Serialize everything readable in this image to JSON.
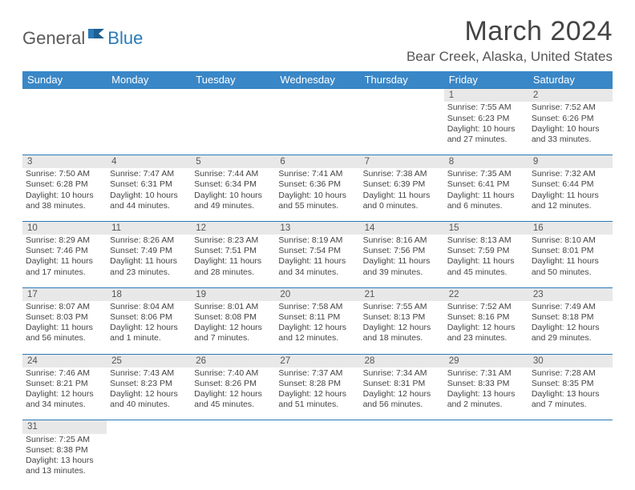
{
  "logo": {
    "part1": "General",
    "part2": "Blue"
  },
  "title": "March 2024",
  "location": "Bear Creek, Alaska, United States",
  "colors": {
    "header_bg": "#3a87c7",
    "accent": "#2a7ab8",
    "daynum_bg": "#e8e8e8",
    "text": "#444444",
    "logo_gray": "#5a5a5a"
  },
  "weekdays": [
    "Sunday",
    "Monday",
    "Tuesday",
    "Wednesday",
    "Thursday",
    "Friday",
    "Saturday"
  ],
  "weeks": [
    [
      null,
      null,
      null,
      null,
      null,
      {
        "n": "1",
        "sr": "Sunrise: 7:55 AM",
        "ss": "Sunset: 6:23 PM",
        "d1": "Daylight: 10 hours",
        "d2": "and 27 minutes."
      },
      {
        "n": "2",
        "sr": "Sunrise: 7:52 AM",
        "ss": "Sunset: 6:26 PM",
        "d1": "Daylight: 10 hours",
        "d2": "and 33 minutes."
      }
    ],
    [
      {
        "n": "3",
        "sr": "Sunrise: 7:50 AM",
        "ss": "Sunset: 6:28 PM",
        "d1": "Daylight: 10 hours",
        "d2": "and 38 minutes."
      },
      {
        "n": "4",
        "sr": "Sunrise: 7:47 AM",
        "ss": "Sunset: 6:31 PM",
        "d1": "Daylight: 10 hours",
        "d2": "and 44 minutes."
      },
      {
        "n": "5",
        "sr": "Sunrise: 7:44 AM",
        "ss": "Sunset: 6:34 PM",
        "d1": "Daylight: 10 hours",
        "d2": "and 49 minutes."
      },
      {
        "n": "6",
        "sr": "Sunrise: 7:41 AM",
        "ss": "Sunset: 6:36 PM",
        "d1": "Daylight: 10 hours",
        "d2": "and 55 minutes."
      },
      {
        "n": "7",
        "sr": "Sunrise: 7:38 AM",
        "ss": "Sunset: 6:39 PM",
        "d1": "Daylight: 11 hours",
        "d2": "and 0 minutes."
      },
      {
        "n": "8",
        "sr": "Sunrise: 7:35 AM",
        "ss": "Sunset: 6:41 PM",
        "d1": "Daylight: 11 hours",
        "d2": "and 6 minutes."
      },
      {
        "n": "9",
        "sr": "Sunrise: 7:32 AM",
        "ss": "Sunset: 6:44 PM",
        "d1": "Daylight: 11 hours",
        "d2": "and 12 minutes."
      }
    ],
    [
      {
        "n": "10",
        "sr": "Sunrise: 8:29 AM",
        "ss": "Sunset: 7:46 PM",
        "d1": "Daylight: 11 hours",
        "d2": "and 17 minutes."
      },
      {
        "n": "11",
        "sr": "Sunrise: 8:26 AM",
        "ss": "Sunset: 7:49 PM",
        "d1": "Daylight: 11 hours",
        "d2": "and 23 minutes."
      },
      {
        "n": "12",
        "sr": "Sunrise: 8:23 AM",
        "ss": "Sunset: 7:51 PM",
        "d1": "Daylight: 11 hours",
        "d2": "and 28 minutes."
      },
      {
        "n": "13",
        "sr": "Sunrise: 8:19 AM",
        "ss": "Sunset: 7:54 PM",
        "d1": "Daylight: 11 hours",
        "d2": "and 34 minutes."
      },
      {
        "n": "14",
        "sr": "Sunrise: 8:16 AM",
        "ss": "Sunset: 7:56 PM",
        "d1": "Daylight: 11 hours",
        "d2": "and 39 minutes."
      },
      {
        "n": "15",
        "sr": "Sunrise: 8:13 AM",
        "ss": "Sunset: 7:59 PM",
        "d1": "Daylight: 11 hours",
        "d2": "and 45 minutes."
      },
      {
        "n": "16",
        "sr": "Sunrise: 8:10 AM",
        "ss": "Sunset: 8:01 PM",
        "d1": "Daylight: 11 hours",
        "d2": "and 50 minutes."
      }
    ],
    [
      {
        "n": "17",
        "sr": "Sunrise: 8:07 AM",
        "ss": "Sunset: 8:03 PM",
        "d1": "Daylight: 11 hours",
        "d2": "and 56 minutes."
      },
      {
        "n": "18",
        "sr": "Sunrise: 8:04 AM",
        "ss": "Sunset: 8:06 PM",
        "d1": "Daylight: 12 hours",
        "d2": "and 1 minute."
      },
      {
        "n": "19",
        "sr": "Sunrise: 8:01 AM",
        "ss": "Sunset: 8:08 PM",
        "d1": "Daylight: 12 hours",
        "d2": "and 7 minutes."
      },
      {
        "n": "20",
        "sr": "Sunrise: 7:58 AM",
        "ss": "Sunset: 8:11 PM",
        "d1": "Daylight: 12 hours",
        "d2": "and 12 minutes."
      },
      {
        "n": "21",
        "sr": "Sunrise: 7:55 AM",
        "ss": "Sunset: 8:13 PM",
        "d1": "Daylight: 12 hours",
        "d2": "and 18 minutes."
      },
      {
        "n": "22",
        "sr": "Sunrise: 7:52 AM",
        "ss": "Sunset: 8:16 PM",
        "d1": "Daylight: 12 hours",
        "d2": "and 23 minutes."
      },
      {
        "n": "23",
        "sr": "Sunrise: 7:49 AM",
        "ss": "Sunset: 8:18 PM",
        "d1": "Daylight: 12 hours",
        "d2": "and 29 minutes."
      }
    ],
    [
      {
        "n": "24",
        "sr": "Sunrise: 7:46 AM",
        "ss": "Sunset: 8:21 PM",
        "d1": "Daylight: 12 hours",
        "d2": "and 34 minutes."
      },
      {
        "n": "25",
        "sr": "Sunrise: 7:43 AM",
        "ss": "Sunset: 8:23 PM",
        "d1": "Daylight: 12 hours",
        "d2": "and 40 minutes."
      },
      {
        "n": "26",
        "sr": "Sunrise: 7:40 AM",
        "ss": "Sunset: 8:26 PM",
        "d1": "Daylight: 12 hours",
        "d2": "and 45 minutes."
      },
      {
        "n": "27",
        "sr": "Sunrise: 7:37 AM",
        "ss": "Sunset: 8:28 PM",
        "d1": "Daylight: 12 hours",
        "d2": "and 51 minutes."
      },
      {
        "n": "28",
        "sr": "Sunrise: 7:34 AM",
        "ss": "Sunset: 8:31 PM",
        "d1": "Daylight: 12 hours",
        "d2": "and 56 minutes."
      },
      {
        "n": "29",
        "sr": "Sunrise: 7:31 AM",
        "ss": "Sunset: 8:33 PM",
        "d1": "Daylight: 13 hours",
        "d2": "and 2 minutes."
      },
      {
        "n": "30",
        "sr": "Sunrise: 7:28 AM",
        "ss": "Sunset: 8:35 PM",
        "d1": "Daylight: 13 hours",
        "d2": "and 7 minutes."
      }
    ],
    [
      {
        "n": "31",
        "sr": "Sunrise: 7:25 AM",
        "ss": "Sunset: 8:38 PM",
        "d1": "Daylight: 13 hours",
        "d2": "and 13 minutes."
      },
      null,
      null,
      null,
      null,
      null,
      null
    ]
  ]
}
